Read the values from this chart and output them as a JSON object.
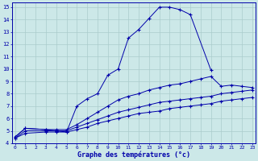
{
  "xlabel": "Graphe des températures (°c)",
  "bg_color": "#cce8e8",
  "grid_color": "#aacccc",
  "line_color": "#0000aa",
  "main_x": [
    0,
    1,
    3,
    4,
    5,
    6,
    7,
    8,
    9,
    10,
    11,
    12,
    13,
    14,
    15,
    16,
    17,
    19
  ],
  "main_y": [
    4.5,
    5.2,
    5.1,
    5.0,
    4.9,
    7.0,
    7.6,
    8.0,
    9.5,
    10.0,
    12.5,
    13.2,
    14.1,
    15.0,
    15.0,
    14.8,
    14.4,
    9.9
  ],
  "avg_max_x": [
    0,
    1,
    3,
    4,
    5,
    6,
    7,
    8,
    9,
    10,
    11,
    12,
    13,
    14,
    15,
    16,
    17,
    18,
    19,
    20,
    21,
    22,
    23
  ],
  "avg_max_y": [
    4.5,
    5.2,
    5.1,
    5.1,
    5.1,
    5.5,
    6.0,
    6.5,
    7.0,
    7.5,
    7.8,
    8.0,
    8.3,
    8.5,
    8.7,
    8.8,
    9.0,
    9.2,
    9.4,
    8.6,
    8.7,
    8.6,
    8.5
  ],
  "avg_mid_x": [
    0,
    1,
    3,
    4,
    5,
    6,
    7,
    8,
    9,
    10,
    11,
    12,
    13,
    14,
    15,
    16,
    17,
    18,
    19,
    20,
    21,
    22,
    23
  ],
  "avg_mid_y": [
    4.4,
    5.0,
    5.0,
    5.0,
    5.0,
    5.3,
    5.6,
    5.9,
    6.2,
    6.5,
    6.7,
    6.9,
    7.1,
    7.3,
    7.4,
    7.5,
    7.6,
    7.7,
    7.8,
    8.0,
    8.1,
    8.2,
    8.3
  ],
  "avg_min_x": [
    0,
    1,
    3,
    4,
    5,
    6,
    7,
    8,
    9,
    10,
    11,
    12,
    13,
    14,
    15,
    16,
    17,
    18,
    19,
    20,
    21,
    22,
    23
  ],
  "avg_min_y": [
    4.4,
    4.8,
    4.9,
    4.9,
    4.9,
    5.1,
    5.3,
    5.6,
    5.8,
    6.0,
    6.2,
    6.4,
    6.5,
    6.6,
    6.8,
    6.9,
    7.0,
    7.1,
    7.2,
    7.4,
    7.5,
    7.6,
    7.7
  ],
  "yticks": [
    4,
    5,
    6,
    7,
    8,
    9,
    10,
    11,
    12,
    13,
    14,
    15
  ],
  "xticks": [
    0,
    1,
    2,
    3,
    4,
    5,
    6,
    7,
    8,
    9,
    10,
    11,
    12,
    13,
    14,
    15,
    16,
    17,
    18,
    19,
    20,
    21,
    22,
    23
  ],
  "ylim_min": 4.0,
  "ylim_max": 15.4,
  "xlim_min": -0.3,
  "xlim_max": 23.3
}
